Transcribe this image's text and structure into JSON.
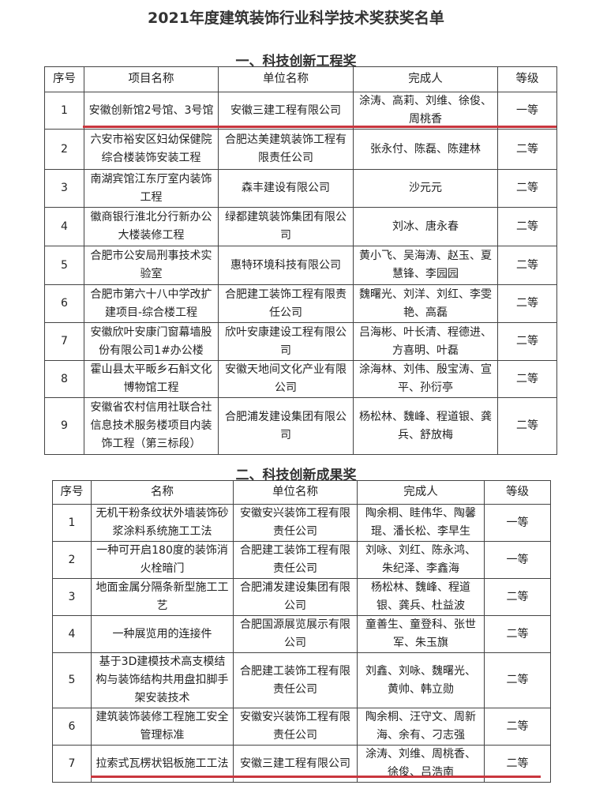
{
  "title": "2021年度建筑装饰行业科学技术奖获奖名单",
  "accent_color": "#c9363e",
  "section1": {
    "heading": "一、科技创新工程奖",
    "headers": [
      "序号",
      "项目名称",
      "单位名称",
      "完成人",
      "等级"
    ],
    "rows": [
      [
        "1",
        "安徽创新馆2号馆、3号馆",
        "安徽三建工程有限公司",
        "涂涛、高莉、刘维、徐俊、周桃香",
        "一等"
      ],
      [
        "2",
        "六安市裕安区妇幼保健院综合楼装饰安装工程",
        "合肥达美建筑装饰工程有限责任公司",
        "张永付、陈磊、陈建林",
        "二等"
      ],
      [
        "3",
        "南湖宾馆江东厅室内装饰工程",
        "森丰建设有限公司",
        "沙元元",
        "二等"
      ],
      [
        "4",
        "徽商银行淮北分行新办公大楼装修工程",
        "绿都建筑装饰集团有限公司",
        "刘冰、唐永春",
        "二等"
      ],
      [
        "5",
        "合肥市公安局刑事技术实验室",
        "惠特环境科技有限公司",
        "黄小飞、吴海涛、赵玉、夏慧锋、李园园",
        "二等"
      ],
      [
        "6",
        "合肥市第六十八中学改扩建项目-综合楼工程",
        "合肥建工装饰工程有限责任公司",
        "魏曙光、刘洋、刘红、李雯艳、高磊",
        "二等"
      ],
      [
        "7",
        "安徽欣叶安康门窗幕墙股份有限公司1#办公楼",
        "欣叶安康建设工程有限公司",
        "吕海彬、叶长清、程德进、方喜明、叶磊",
        "二等"
      ],
      [
        "8",
        "霍山县太平畈乡石斛文化博物馆工程",
        "安徽天地间文化产业有限公司",
        "涂海林、刘伟、殷宝涛、宣平、孙衍亭",
        "二等"
      ],
      [
        "9",
        "安徽省农村信用社联合社信息技术服务楼项目内装饰工程（第三标段）",
        "合肥浦发建设集团有限公司",
        "杨松林、魏峰、程道银、龚兵、舒放梅",
        "二等"
      ]
    ]
  },
  "section2": {
    "heading": "二、科技创新成果奖",
    "headers": [
      "序号",
      "名称",
      "单位名称",
      "完成人",
      "等级"
    ],
    "rows": [
      [
        "1",
        "无机干粉条纹状外墙装饰砂浆涂料系统施工工法",
        "安徽安兴装饰工程有限责任公司",
        "陶余桐、眭伟华、陶馨琨、潘长松、李早生",
        "一等"
      ],
      [
        "2",
        "一种可开启180度的装饰消火栓暗门",
        "合肥建工装饰工程有限责任公司",
        "刘咏、刘红、陈永鸿、朱纪泽、李鑫海",
        "一等"
      ],
      [
        "3",
        "地面金属分隔条新型施工工艺",
        "合肥浦发建设集团有限公司",
        "杨松林、魏峰、程道银、龚兵、杜益波",
        "二等"
      ],
      [
        "4",
        "一种展览用的连接件",
        "合肥国源展览展示有限公司",
        "童善生、童登科、张世军、朱玉旗",
        "二等"
      ],
      [
        "5",
        "基于3D建模技术高支模结构与装饰结构共用盘扣脚手架安装技术",
        "合肥建工装饰工程有限责任公司",
        "刘鑫、刘咏、魏曙光、黄帅、韩立勋",
        "二等"
      ],
      [
        "6",
        "建筑装饰装修工程施工安全管理标准",
        "安徽安兴装饰工程有限责任公司",
        "陶余桐、汪守文、周新海、余有、刁志强",
        "二等"
      ],
      [
        "7",
        "拉索式瓦楞状铝板施工工法",
        "安徽三建工程有限公司",
        "涂涛、刘维、周桃香、徐俊、吕浩南",
        "二等"
      ]
    ]
  }
}
